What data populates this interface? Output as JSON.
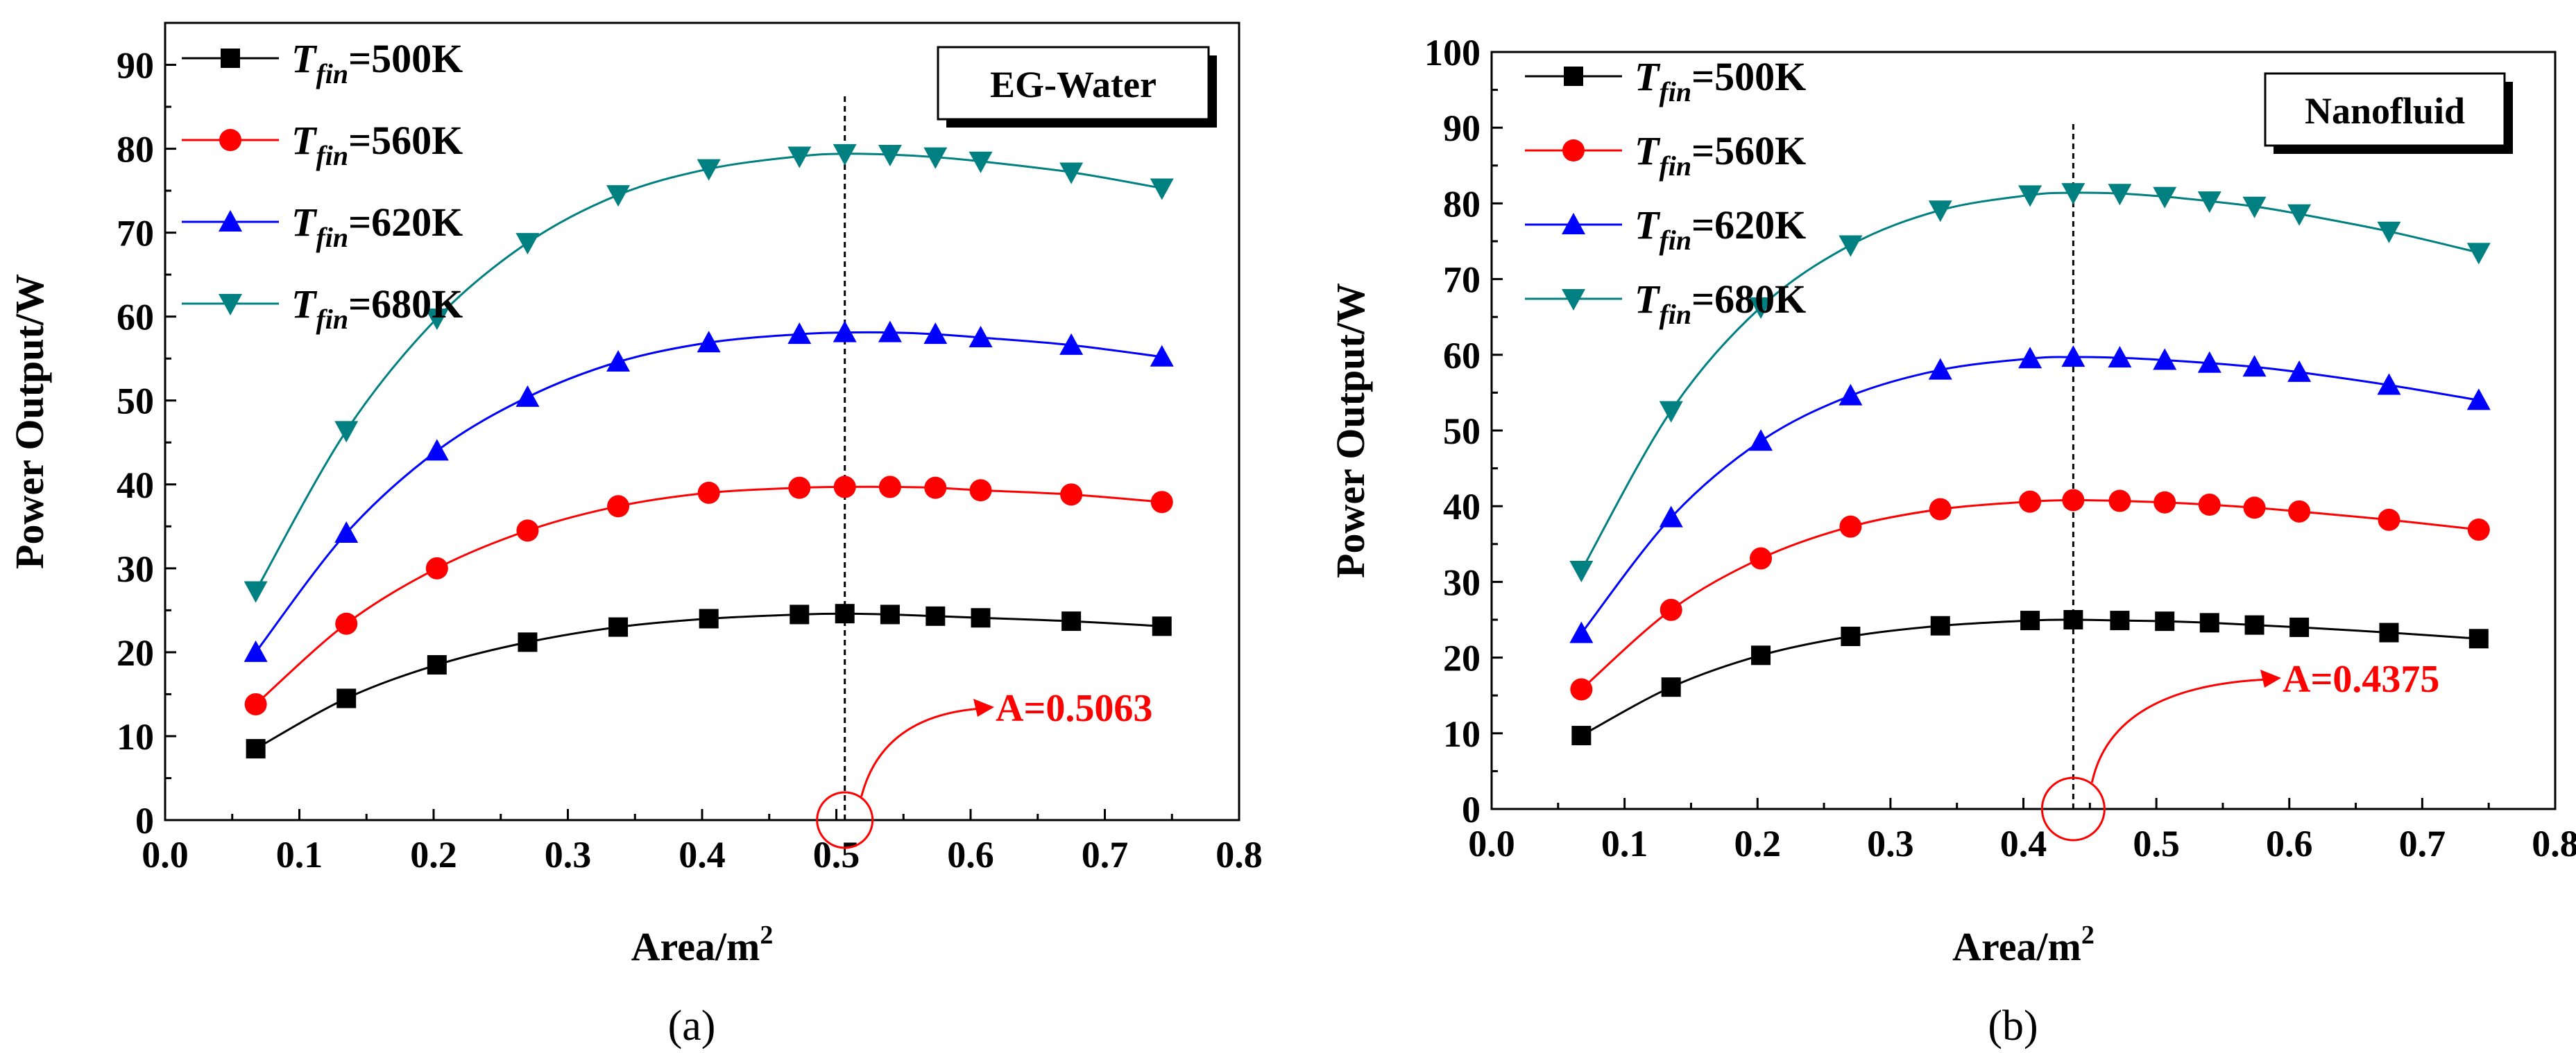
{
  "chart_data": [
    {
      "type": "line",
      "panel_label": "(a)",
      "title_box": "EG-Water",
      "xlabel": "Area/m",
      "xlabel_sup": "2",
      "ylabel": "Power Output/W",
      "xlim": [
        0.0,
        0.8
      ],
      "ylim": [
        0,
        95
      ],
      "xticks": [
        "0.0",
        "0.1",
        "0.2",
        "0.3",
        "0.4",
        "0.5",
        "0.6",
        "0.7",
        "0.8"
      ],
      "yticks": [
        "0",
        "10",
        "20",
        "30",
        "40",
        "50",
        "60",
        "70",
        "80",
        "90"
      ],
      "x": [
        0.0675,
        0.135,
        0.2025,
        0.27,
        0.3375,
        0.405,
        0.4725,
        0.5063,
        0.54,
        0.5738,
        0.6075,
        0.675,
        0.7425
      ],
      "series": [
        {
          "name": "=500K",
          "color": "#000000",
          "marker": "square",
          "values": [
            8.5,
            14.5,
            18.5,
            21.2,
            23.0,
            24.0,
            24.5,
            24.6,
            24.5,
            24.3,
            24.1,
            23.7,
            23.1
          ]
        },
        {
          "name": "=560K",
          "color": "#ff0000",
          "marker": "circle",
          "values": [
            13.8,
            23.4,
            30.0,
            34.5,
            37.4,
            39.0,
            39.6,
            39.7,
            39.7,
            39.6,
            39.3,
            38.8,
            37.9
          ]
        },
        {
          "name": "=620K",
          "color": "#0000ff",
          "marker": "triangle-up",
          "values": [
            20.0,
            34.2,
            44.0,
            50.4,
            54.6,
            56.9,
            57.9,
            58.1,
            58.1,
            57.9,
            57.5,
            56.6,
            55.2
          ]
        },
        {
          "name": "=680K",
          "color": "#008080",
          "marker": "triangle-down",
          "values": [
            27.3,
            46.4,
            59.8,
            68.8,
            74.5,
            77.6,
            79.1,
            79.4,
            79.3,
            79.0,
            78.5,
            77.2,
            75.3
          ]
        }
      ],
      "legend_prefix": "T",
      "legend_sub": "fin",
      "vline_x": 0.5063,
      "annotation": {
        "text": "A=0.5063",
        "x": 0.5063,
        "y": 0
      }
    },
    {
      "type": "line",
      "panel_label": "(b)",
      "title_box": "Nanofluid",
      "xlabel": "Area/m",
      "xlabel_sup": "2",
      "ylabel": "Power Output/W",
      "xlim": [
        0.0,
        0.8
      ],
      "ylim": [
        0,
        100
      ],
      "xticks": [
        "0.0",
        "0.1",
        "0.2",
        "0.3",
        "0.4",
        "0.5",
        "0.6",
        "0.7",
        "0.8"
      ],
      "yticks": [
        "0",
        "10",
        "20",
        "30",
        "40",
        "50",
        "60",
        "70",
        "80",
        "90",
        "100"
      ],
      "x": [
        0.0675,
        0.135,
        0.2025,
        0.27,
        0.3375,
        0.405,
        0.4375,
        0.4725,
        0.5063,
        0.54,
        0.5738,
        0.6075,
        0.675,
        0.7425
      ],
      "series": [
        {
          "name": "=500K",
          "color": "#000000",
          "marker": "square",
          "values": [
            9.7,
            16.1,
            20.3,
            22.8,
            24.2,
            24.9,
            25.0,
            24.9,
            24.8,
            24.6,
            24.3,
            24.0,
            23.3,
            22.5
          ]
        },
        {
          "name": "=560K",
          "color": "#ff0000",
          "marker": "circle",
          "values": [
            15.8,
            26.3,
            33.1,
            37.3,
            39.6,
            40.6,
            40.8,
            40.7,
            40.5,
            40.2,
            39.8,
            39.3,
            38.2,
            36.9
          ]
        },
        {
          "name": "=620K",
          "color": "#0000ff",
          "marker": "triangle-up",
          "values": [
            23.2,
            38.5,
            48.6,
            54.6,
            58.0,
            59.5,
            59.7,
            59.6,
            59.3,
            58.9,
            58.4,
            57.7,
            56.0,
            54.0
          ]
        },
        {
          "name": "=680K",
          "color": "#008080",
          "marker": "triangle-down",
          "values": [
            31.5,
            52.6,
            66.3,
            74.5,
            79.1,
            81.1,
            81.4,
            81.3,
            80.9,
            80.3,
            79.6,
            78.6,
            76.3,
            73.5
          ]
        }
      ],
      "legend_prefix": "T",
      "legend_sub": "fin",
      "vline_x": 0.4375,
      "annotation": {
        "text": "A=0.4375",
        "x": 0.4375,
        "y": 0
      }
    }
  ]
}
